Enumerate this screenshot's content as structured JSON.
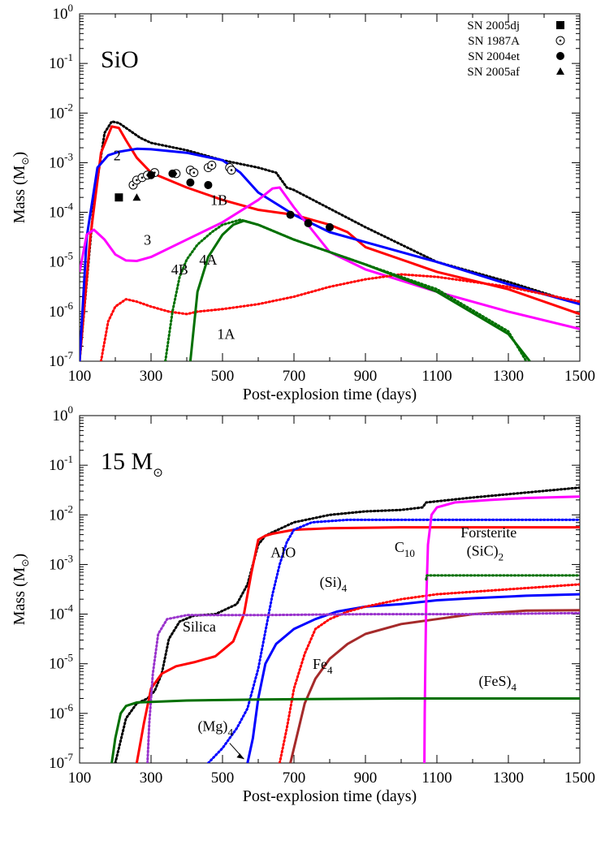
{
  "chart_data": [
    {
      "type": "line",
      "yscale": "log",
      "xlim": [
        100,
        1500
      ],
      "ylim_exp": [
        -7,
        0
      ],
      "xticks": [
        "100",
        "300",
        "500",
        "700",
        "900",
        "1100",
        "1300",
        "1500"
      ],
      "yticks_exp": [
        "0",
        "-1",
        "-2",
        "-3",
        "-4",
        "-5",
        "-6",
        "-7"
      ],
      "ytick_base": "10",
      "xlabel": "Post-explosion time (days)",
      "ylabel": "Mass (M",
      "ylabel_tail": ")",
      "title": "SiO",
      "series": [
        {
          "name": "",
          "color": "#000000",
          "dash": "dot",
          "x": [
            100,
            140,
            170,
            190,
            210,
            240,
            270,
            300,
            400,
            500,
            600,
            650,
            680,
            700,
            900,
            1100,
            1300,
            1500
          ],
          "y": [
            -7,
            -3.8,
            -2.4,
            -2.17,
            -2.2,
            -2.35,
            -2.5,
            -2.6,
            -2.75,
            -2.95,
            -3.1,
            -3.2,
            -3.5,
            -3.55,
            -4.3,
            -5.0,
            -5.4,
            -5.85
          ]
        },
        {
          "name": "",
          "color": "#ff0000",
          "dash": "solid",
          "x": [
            100,
            130,
            160,
            190,
            210,
            230,
            260,
            300,
            400,
            500,
            600,
            700,
            800,
            850,
            900,
            1100,
            1300,
            1500
          ],
          "y": [
            -7,
            -4.5,
            -2.8,
            -2.27,
            -2.3,
            -2.55,
            -2.9,
            -3.2,
            -3.5,
            -3.75,
            -3.95,
            -4.05,
            -4.25,
            -4.4,
            -4.7,
            -5.2,
            -5.55,
            -6.05
          ]
        },
        {
          "name": "",
          "color": "#0000ff",
          "dash": "solid",
          "x": [
            100,
            120,
            150,
            180,
            210,
            260,
            300,
            400,
            500,
            550,
            600,
            700,
            800,
            900,
            1100,
            1300,
            1500
          ],
          "y": [
            -7,
            -4.5,
            -3.1,
            -2.85,
            -2.78,
            -2.72,
            -2.73,
            -2.8,
            -2.95,
            -3.2,
            -3.6,
            -4.05,
            -4.4,
            -4.6,
            -5.0,
            -5.45,
            -5.85
          ]
        },
        {
          "name": "",
          "color": "#ff00ff",
          "dash": "solid",
          "x": [
            100,
            120,
            140,
            170,
            200,
            230,
            260,
            300,
            400,
            500,
            600,
            640,
            660,
            700,
            800,
            900,
            1100,
            1300,
            1500
          ],
          "y": [
            -5.2,
            -4.45,
            -4.35,
            -4.55,
            -4.85,
            -4.97,
            -4.98,
            -4.9,
            -4.55,
            -4.2,
            -3.75,
            -3.52,
            -3.5,
            -3.9,
            -4.8,
            -5.15,
            -5.6,
            -6.0,
            -6.35
          ]
        },
        {
          "name": "",
          "color": "#ff0000",
          "dash": "dot",
          "x": [
            160,
            180,
            200,
            230,
            260,
            300,
            350,
            400,
            430,
            500,
            600,
            700,
            800,
            900,
            1000,
            1100,
            1300,
            1500
          ],
          "y": [
            -7,
            -6.2,
            -5.9,
            -5.75,
            -5.8,
            -5.9,
            -6.0,
            -6.05,
            -6.0,
            -5.95,
            -5.85,
            -5.7,
            -5.5,
            -5.35,
            -5.25,
            -5.3,
            -5.5,
            -5.8
          ]
        },
        {
          "name": "",
          "color": "#007000",
          "dash": "dot",
          "x": [
            340,
            360,
            380,
            400,
            430,
            470,
            500,
            550,
            600,
            700,
            900,
            1100,
            1300,
            1350
          ],
          "y": [
            -7,
            -6,
            -5.3,
            -4.95,
            -4.65,
            -4.4,
            -4.25,
            -4.15,
            -4.25,
            -4.55,
            -5.05,
            -5.55,
            -6.4,
            -7.0
          ]
        },
        {
          "name": "",
          "color": "#007000",
          "dash": "solid",
          "x": [
            410,
            430,
            460,
            500,
            530,
            560,
            600,
            700,
            900,
            1100,
            1300,
            1360
          ],
          "y": [
            -7,
            -5.6,
            -4.9,
            -4.45,
            -4.25,
            -4.17,
            -4.25,
            -4.55,
            -5.05,
            -5.6,
            -6.45,
            -7.0
          ]
        }
      ],
      "curve_labels": [
        {
          "text": "2",
          "x": 205,
          "y": -2.95
        },
        {
          "text": "1B",
          "x": 490,
          "y": -3.85
        },
        {
          "text": "3",
          "x": 290,
          "y": -4.65
        },
        {
          "text": "4B",
          "x": 380,
          "y": -5.25
        },
        {
          "text": "4A",
          "x": 460,
          "y": -5.05
        },
        {
          "text": "1A",
          "x": 510,
          "y": -6.55
        }
      ],
      "legend_position": "top-right",
      "legend": [
        {
          "label": "SN 2005dj",
          "marker": "square"
        },
        {
          "label": "SN 1987A",
          "marker": "open-circle"
        },
        {
          "label": "SN 2004et",
          "marker": "filled-circle"
        },
        {
          "label": "SN 2005af",
          "marker": "triangle"
        }
      ],
      "points": {
        "SN 2005dj": [
          [
            210,
            -3.7
          ]
        ],
        "SN 1987A": [
          [
            250,
            -3.45
          ],
          [
            260,
            -3.35
          ],
          [
            275,
            -3.3
          ],
          [
            290,
            -3.25
          ],
          [
            310,
            -3.2
          ],
          [
            370,
            -3.22
          ],
          [
            410,
            -3.15
          ],
          [
            420,
            -3.2
          ],
          [
            460,
            -3.1
          ],
          [
            470,
            -3.05
          ],
          [
            520,
            -3.1
          ],
          [
            525,
            -3.15
          ]
        ],
        "SN 2004et": [
          [
            300,
            -3.25
          ],
          [
            360,
            -3.22
          ],
          [
            410,
            -3.4
          ],
          [
            460,
            -3.45
          ],
          [
            690,
            -4.05
          ],
          [
            740,
            -4.22
          ],
          [
            800,
            -4.3
          ]
        ],
        "SN 2005af": [
          [
            260,
            -3.7
          ]
        ]
      }
    },
    {
      "type": "line",
      "yscale": "log",
      "xlim": [
        100,
        1500
      ],
      "ylim_exp": [
        -7,
        0
      ],
      "xticks": [
        "100",
        "300",
        "500",
        "700",
        "900",
        "1100",
        "1300",
        "1500"
      ],
      "yticks_exp": [
        "0",
        "-1",
        "-2",
        "-3",
        "-4",
        "-5",
        "-6",
        "-7"
      ],
      "ytick_base": "10",
      "xlabel": "Post-explosion time (days)",
      "ylabel": "Mass (M",
      "ylabel_tail": ")",
      "title": "15 M",
      "series": [
        {
          "name": "",
          "color": "#000000",
          "dash": "dot",
          "x": [
            200,
            230,
            260,
            290,
            310,
            330,
            350,
            380,
            420,
            480,
            540,
            570,
            600,
            620,
            640,
            700,
            800,
            900,
            1000,
            1060,
            1070,
            1200,
            1350,
            1500
          ],
          "y": [
            -7,
            -6.1,
            -5.8,
            -5.7,
            -5.55,
            -5.2,
            -4.5,
            -4.15,
            -4.03,
            -4.0,
            -3.8,
            -3.4,
            -2.6,
            -2.42,
            -2.35,
            -2.15,
            -2.0,
            -1.93,
            -1.9,
            -1.85,
            -1.75,
            -1.65,
            -1.55,
            -1.45
          ]
        },
        {
          "name": "",
          "color": "#ff0000",
          "dash": "solid",
          "x": [
            260,
            280,
            300,
            330,
            370,
            420,
            480,
            530,
            560,
            580,
            600,
            620,
            640,
            700,
            800,
            1000,
            1200,
            1500
          ],
          "y": [
            -7,
            -6.2,
            -5.5,
            -5.2,
            -5.05,
            -4.97,
            -4.85,
            -4.55,
            -4.0,
            -3.2,
            -2.5,
            -2.42,
            -2.38,
            -2.3,
            -2.27,
            -2.25,
            -2.25,
            -2.25
          ]
        },
        {
          "name": "",
          "color": "#0000ff",
          "dash": "dot",
          "x": [
            460,
            500,
            540,
            570,
            600,
            640,
            660,
            680,
            700,
            750,
            850,
            1000,
            1200,
            1500
          ],
          "y": [
            -7,
            -6.7,
            -6.3,
            -5.9,
            -5.1,
            -3.6,
            -3.0,
            -2.55,
            -2.3,
            -2.15,
            -2.1,
            -2.1,
            -2.1,
            -2.1
          ]
        },
        {
          "name": "",
          "color": "#0000ff",
          "dash": "solid",
          "x": [
            570,
            585,
            600,
            620,
            650,
            700,
            760,
            820,
            900,
            1000,
            1100,
            1200,
            1350,
            1500
          ],
          "y": [
            -7,
            -6.5,
            -5.7,
            -5.0,
            -4.6,
            -4.3,
            -4.1,
            -3.95,
            -3.85,
            -3.8,
            -3.72,
            -3.68,
            -3.63,
            -3.6
          ]
        },
        {
          "name": "",
          "color": "#ff0000",
          "dash": "dot",
          "x": [
            660,
            680,
            700,
            730,
            760,
            800,
            850,
            900,
            1000,
            1100,
            1300,
            1500
          ],
          "y": [
            -7,
            -6.3,
            -5.5,
            -4.8,
            -4.3,
            -4.1,
            -3.95,
            -3.85,
            -3.7,
            -3.6,
            -3.5,
            -3.4
          ]
        },
        {
          "name": "",
          "color": "#a52a2a",
          "dash": "solid",
          "x": [
            690,
            710,
            730,
            760,
            800,
            850,
            900,
            1000,
            1100,
            1200,
            1350,
            1500
          ],
          "y": [
            -7,
            -6.4,
            -5.8,
            -5.3,
            -4.9,
            -4.6,
            -4.4,
            -4.2,
            -4.1,
            -4.0,
            -3.93,
            -3.92
          ]
        },
        {
          "name": "",
          "color": "#ff00ff",
          "dash": "solid",
          "x": [
            1065,
            1066,
            1068,
            1070,
            1075,
            1085,
            1100,
            1150,
            1250,
            1350,
            1500
          ],
          "y": [
            -7,
            -6,
            -4.8,
            -3.8,
            -2.6,
            -2.0,
            -1.85,
            -1.75,
            -1.7,
            -1.66,
            -1.63
          ]
        },
        {
          "name": "",
          "color": "#007000",
          "dash": "dot",
          "x": [
            1070,
            1072,
            1500
          ],
          "y": [
            -3.3,
            -3.22,
            -3.22
          ]
        },
        {
          "name": "",
          "color": "#9932cc",
          "dash": "dot",
          "x": [
            290,
            295,
            305,
            320,
            345,
            400,
            600,
            900,
            1200,
            1500
          ],
          "y": [
            -7,
            -6.2,
            -5.2,
            -4.4,
            -4.1,
            -4.02,
            -4.02,
            -4.0,
            -4.0,
            -3.98
          ]
        },
        {
          "name": "",
          "color": "#007000",
          "dash": "solid",
          "x": [
            190,
            200,
            215,
            230,
            260,
            300,
            400,
            600,
            1000,
            1500
          ],
          "y": [
            -7,
            -6.5,
            -6.0,
            -5.85,
            -5.78,
            -5.77,
            -5.74,
            -5.72,
            -5.7,
            -5.7
          ]
        }
      ],
      "curve_labels": [
        {
          "text": "Silica",
          "x": 435,
          "y": -4.35
        },
        {
          "text": "AlO",
          "x": 670,
          "y": -2.85
        },
        {
          "text": "C",
          "sub": "10",
          "x": 1010,
          "y": -2.75
        },
        {
          "text": "Forsterite",
          "x": 1245,
          "y": -2.45
        },
        {
          "text": "(SiC)",
          "sub": "2",
          "x": 1235,
          "y": -2.82
        },
        {
          "text": "(Si)",
          "sub": "4",
          "x": 810,
          "y": -3.45
        },
        {
          "text": "Fe",
          "sub": "4",
          "x": 780,
          "y": -5.1
        },
        {
          "text": "(FeS)",
          "sub": "4",
          "x": 1270,
          "y": -5.45
        },
        {
          "text": "(Mg)",
          "sub": "4",
          "x": 480,
          "y": -6.35
        }
      ]
    }
  ]
}
